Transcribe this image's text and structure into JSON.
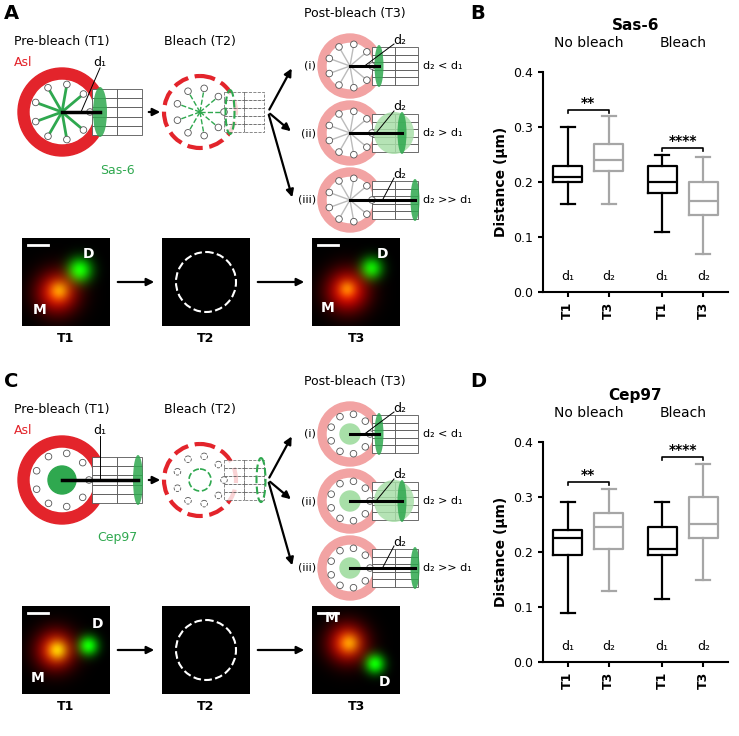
{
  "panel_labels": [
    "A",
    "B",
    "C",
    "D"
  ],
  "diagrams": [
    {
      "stage_titles": [
        "Pre-bleach (T1)",
        "Bleach (T2)",
        "Post-bleach (T3)"
      ],
      "ring_label": "Asl",
      "protein_label": "Sas-6",
      "distance_labels": [
        "d₁",
        "d₂"
      ],
      "outcomes": [
        {
          "label": "(i)",
          "relation": "d₂ < d₁"
        },
        {
          "label": "(ii)",
          "relation": "d₂ > d₁"
        },
        {
          "label": "(iii)",
          "relation": "d₂ >> d₁"
        }
      ],
      "micrographs": [
        {
          "frame": "T1",
          "marks": [
            "D",
            "M"
          ]
        },
        {
          "frame": "T2",
          "marks": []
        },
        {
          "frame": "T3",
          "marks": [
            "D",
            "M"
          ]
        }
      ]
    },
    {
      "stage_titles": [
        "Pre-bleach (T1)",
        "Bleach (T2)",
        "Post-bleach (T3)"
      ],
      "ring_label": "Asl",
      "protein_label": "Cep97",
      "distance_labels": [
        "d₁",
        "d₂"
      ],
      "outcomes": [
        {
          "label": "(i)",
          "relation": "d₂ < d₁"
        },
        {
          "label": "(ii)",
          "relation": "d₂ > d₁"
        },
        {
          "label": "(iii)",
          "relation": "d₂ >> d₁"
        }
      ],
      "micrographs": [
        {
          "frame": "T1",
          "marks": [
            "M",
            "D"
          ]
        },
        {
          "frame": "T2",
          "marks": []
        },
        {
          "frame": "T3",
          "marks": [
            "M",
            "D"
          ]
        }
      ]
    }
  ],
  "chart_data": [
    {
      "type": "box",
      "title": "Sas-6",
      "ylabel": "Distance (µm)",
      "ylim": [
        0,
        0.4
      ],
      "yticks": [
        {
          "value": 0.0,
          "label": "0.0"
        },
        {
          "value": 0.1,
          "label": "0.1"
        },
        {
          "value": 0.2,
          "label": "0.2"
        },
        {
          "value": 0.3,
          "label": "0.3"
        },
        {
          "value": 0.4,
          "label": "0.4"
        }
      ],
      "colors": [
        "#000000",
        "#a6a6a6",
        "#000000",
        "#a6a6a6"
      ],
      "groups": [
        {
          "name": "No bleach",
          "significance": "**",
          "categories": [
            "T1",
            "T3"
          ],
          "box_labels": [
            "d₁",
            "d₂"
          ],
          "stats": [
            {
              "whislo": 0.16,
              "q1": 0.2,
              "med": 0.21,
              "q3": 0.23,
              "whishi": 0.3
            },
            {
              "whislo": 0.16,
              "q1": 0.22,
              "med": 0.24,
              "q3": 0.27,
              "whishi": 0.32
            }
          ]
        },
        {
          "name": "Bleach",
          "significance": "****",
          "categories": [
            "T1",
            "T3"
          ],
          "box_labels": [
            "d₁",
            "d₂"
          ],
          "stats": [
            {
              "whislo": 0.11,
              "q1": 0.18,
              "med": 0.2,
              "q3": 0.23,
              "whishi": 0.25
            },
            {
              "whislo": 0.07,
              "q1": 0.14,
              "med": 0.165,
              "q3": 0.2,
              "whishi": 0.245
            }
          ]
        }
      ]
    },
    {
      "type": "box",
      "title": "Cep97",
      "ylabel": "Distance (µm)",
      "ylim": [
        0,
        0.4
      ],
      "yticks": [
        {
          "value": 0.0,
          "label": "0.0"
        },
        {
          "value": 0.1,
          "label": "0.1"
        },
        {
          "value": 0.2,
          "label": "0.2"
        },
        {
          "value": 0.3,
          "label": "0.3"
        },
        {
          "value": 0.4,
          "label": "0.4"
        }
      ],
      "colors": [
        "#000000",
        "#a6a6a6",
        "#000000",
        "#a6a6a6"
      ],
      "groups": [
        {
          "name": "No bleach",
          "significance": "**",
          "categories": [
            "T1",
            "T3"
          ],
          "box_labels": [
            "d₁",
            "d₂"
          ],
          "stats": [
            {
              "whislo": 0.09,
              "q1": 0.195,
              "med": 0.225,
              "q3": 0.24,
              "whishi": 0.29
            },
            {
              "whislo": 0.13,
              "q1": 0.205,
              "med": 0.245,
              "q3": 0.27,
              "whishi": 0.315
            }
          ]
        },
        {
          "name": "Bleach",
          "significance": "****",
          "categories": [
            "T1",
            "T3"
          ],
          "box_labels": [
            "d₁",
            "d₂"
          ],
          "stats": [
            {
              "whislo": 0.115,
              "q1": 0.195,
              "med": 0.205,
              "q3": 0.245,
              "whishi": 0.29
            },
            {
              "whislo": 0.15,
              "q1": 0.225,
              "med": 0.25,
              "q3": 0.3,
              "whishi": 0.36
            }
          ]
        }
      ]
    }
  ]
}
